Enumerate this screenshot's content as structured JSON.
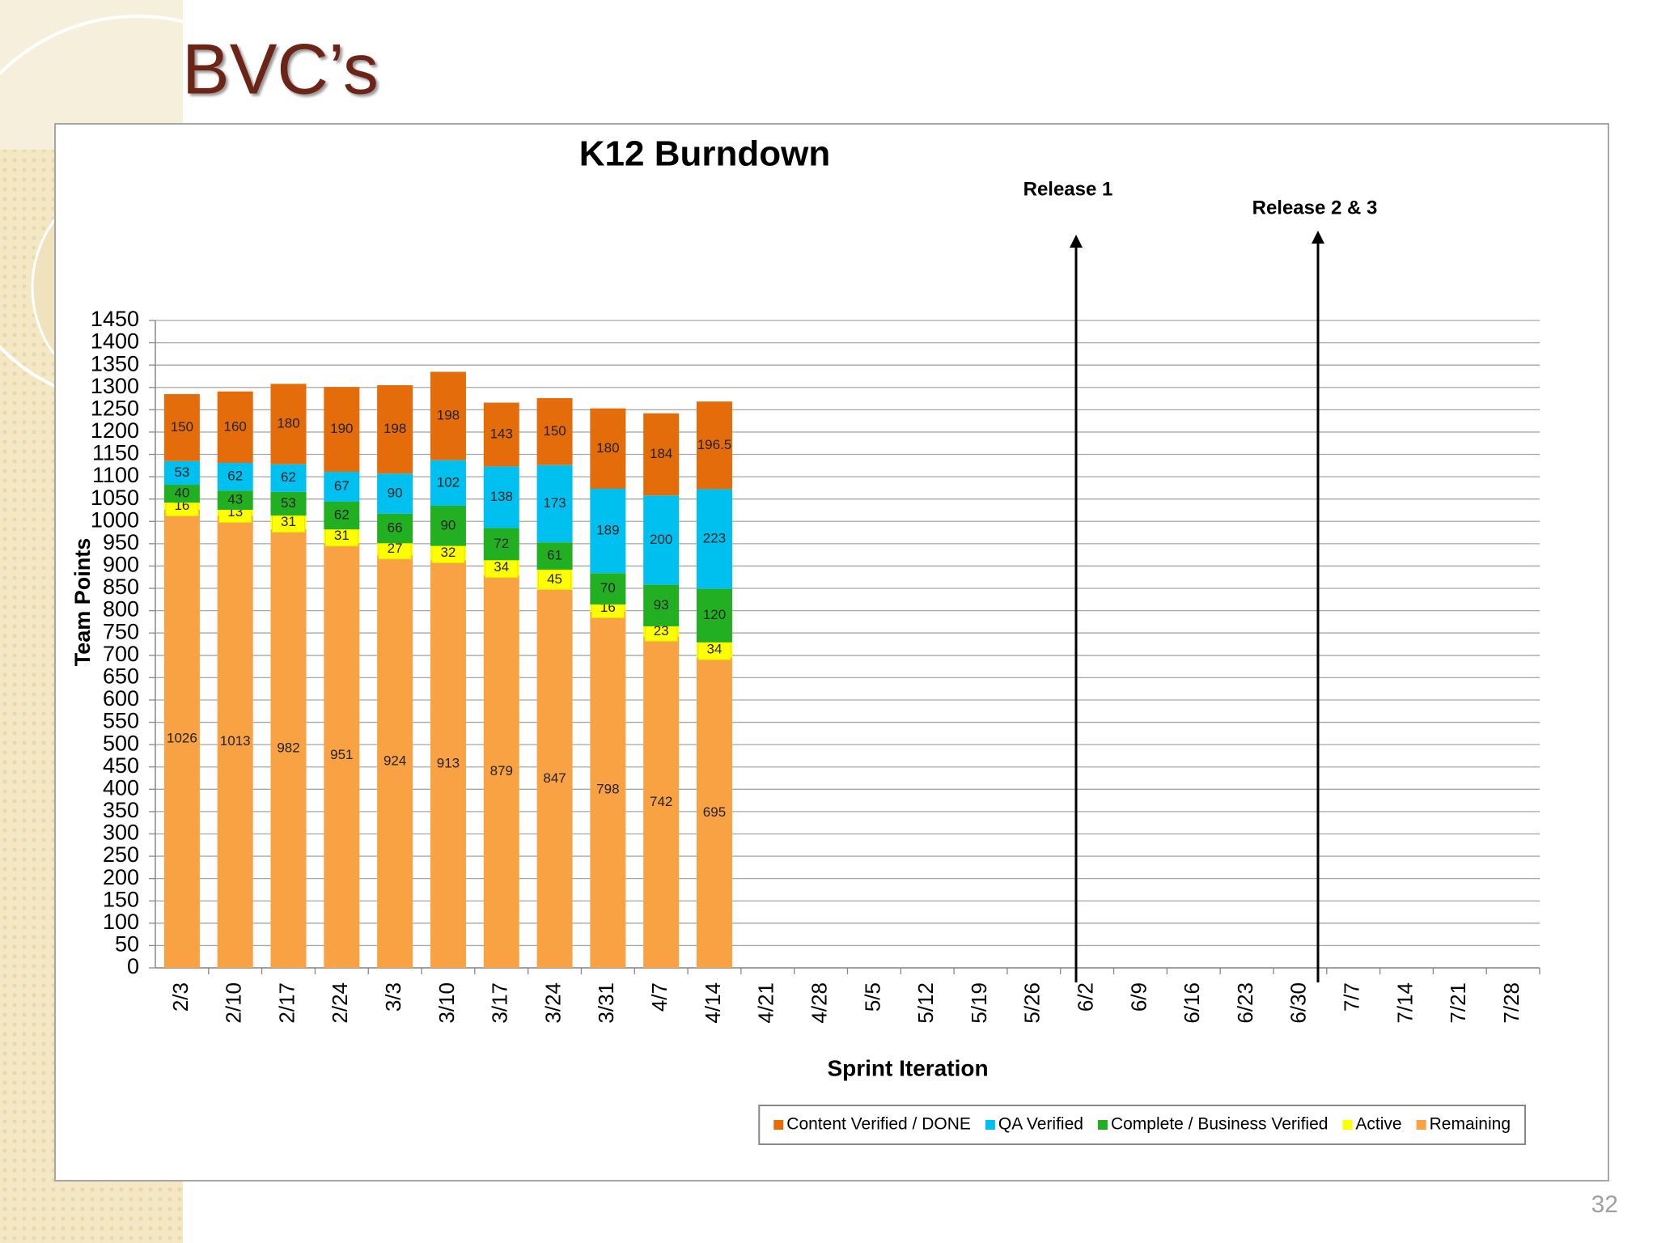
{
  "slide_title": "BVC’s",
  "page_number": "32",
  "chart_data": {
    "type": "bar",
    "stacked": true,
    "title": "K12 Burndown",
    "x_label": "Sprint Iteration",
    "y_label": "Team Points",
    "annotations": [
      "Release 1",
      "Release 2 & 3"
    ],
    "categories": [
      "2/3",
      "2/10",
      "2/17",
      "2/24",
      "3/3",
      "3/10",
      "3/17",
      "3/24",
      "3/31",
      "4/7",
      "4/14",
      "4/21",
      "4/28",
      "5/5",
      "5/12",
      "5/19",
      "5/26",
      "6/2",
      "6/9",
      "6/16",
      "6/23",
      "6/30",
      "7/7",
      "7/14",
      "7/21",
      "7/28"
    ],
    "series": [
      {
        "name": "Content Verified / DONE",
        "color": "#e46c0a",
        "values": [
          150,
          160,
          180,
          190,
          198,
          198,
          143,
          150,
          180,
          184,
          196.5,
          null,
          null,
          null,
          null,
          null,
          null,
          null,
          null,
          null,
          null,
          null,
          null,
          null,
          null,
          null
        ]
      },
      {
        "name": "QA Verified",
        "color": "#00c0f0",
        "values": [
          53,
          62,
          62,
          67,
          90,
          102,
          138,
          173,
          189,
          200,
          223,
          null,
          null,
          null,
          null,
          null,
          null,
          null,
          null,
          null,
          null,
          null,
          null,
          null,
          null,
          null
        ]
      },
      {
        "name": "Complete / Business Verified",
        "color": "#22b022",
        "values": [
          40,
          43,
          53,
          62,
          66,
          90,
          72,
          61,
          70,
          93,
          120,
          null,
          null,
          null,
          null,
          null,
          null,
          null,
          null,
          null,
          null,
          null,
          null,
          null,
          null,
          null
        ]
      },
      {
        "name": "Active",
        "color": "#ffff00",
        "values": [
          16,
          13,
          31,
          31,
          27,
          32,
          34,
          45,
          16,
          23,
          34,
          null,
          null,
          null,
          null,
          null,
          null,
          null,
          null,
          null,
          null,
          null,
          null,
          null,
          null,
          null
        ]
      },
      {
        "name": "Remaining",
        "color": "#f9a244",
        "values": [
          1026,
          1013,
          982,
          951,
          924,
          913,
          879,
          847,
          798,
          742,
          695,
          null,
          null,
          null,
          null,
          null,
          null,
          null,
          null,
          null,
          null,
          null,
          null,
          null,
          null,
          null
        ]
      }
    ],
    "ylim": [
      0,
      1450
    ],
    "yticks": [
      0,
      50,
      100,
      150,
      200,
      250,
      300,
      350,
      400,
      450,
      500,
      550,
      600,
      650,
      700,
      750,
      800,
      850,
      900,
      950,
      1000,
      1050,
      1100,
      1150,
      1200,
      1250,
      1300,
      1350,
      1400,
      1450
    ],
    "grid": true,
    "legend": "bottom-right"
  }
}
